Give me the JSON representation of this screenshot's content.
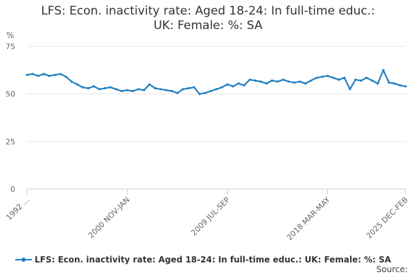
{
  "chart_data": {
    "type": "line",
    "title_line1": "LFS: Econ. inactivity rate: Aged 18-24: In full-time educ.:",
    "title_line2": "UK: Female: %: SA",
    "ylabel": "%",
    "ylim": [
      0,
      75
    ],
    "yticks": [
      "0",
      "25",
      "50",
      "75"
    ],
    "grid": true,
    "legend_position": "bottom",
    "color": "#1f7ec1",
    "x_tick_labels": [
      "1992 ...",
      "2000 NOV-JAN",
      "2009 JUL-SEP",
      "2018 MAR-MAY",
      "2025 DEC-FEB"
    ],
    "x_range": [
      "1992",
      "2025 DEC-FEB"
    ],
    "series": [
      {
        "name": "LFS: Econ. inactivity rate: Aged 18-24: In full-time educ.: UK: Female: %: SA",
        "x": [
          1992.0,
          1992.5,
          1993.0,
          1993.5,
          1994.0,
          1994.5,
          1995.0,
          1995.5,
          1996.0,
          1996.5,
          1997.0,
          1997.5,
          1998.0,
          1998.5,
          1999.0,
          1999.5,
          2000.0,
          2000.5,
          2001.0,
          2001.5,
          2002.0,
          2002.5,
          2003.0,
          2003.5,
          2004.0,
          2004.5,
          2005.0,
          2005.5,
          2006.0,
          2006.5,
          2007.0,
          2007.5,
          2008.0,
          2008.5,
          2009.0,
          2009.5,
          2010.0,
          2010.5,
          2011.0,
          2011.5,
          2012.0,
          2012.5,
          2013.0,
          2013.5,
          2014.0,
          2014.5,
          2015.0,
          2015.5,
          2016.0,
          2016.5,
          2017.0,
          2017.5,
          2018.0,
          2018.5,
          2019.0,
          2019.5,
          2020.0,
          2020.5,
          2021.0,
          2021.5,
          2022.0,
          2022.5,
          2023.0,
          2023.5,
          2024.0,
          2024.5,
          2025.0,
          2025.5,
          2026.0
        ],
        "values": [
          60.0,
          60.5,
          59.5,
          60.5,
          59.5,
          60.0,
          60.5,
          59.0,
          56.5,
          55.0,
          53.5,
          53.0,
          54.0,
          52.5,
          53.0,
          53.5,
          52.5,
          51.5,
          52.0,
          51.5,
          52.5,
          52.0,
          55.0,
          53.0,
          52.5,
          52.0,
          51.5,
          50.5,
          52.5,
          53.0,
          53.5,
          50.0,
          50.5,
          51.5,
          52.5,
          53.5,
          55.0,
          54.0,
          55.5,
          54.5,
          57.5,
          57.0,
          56.5,
          55.5,
          57.0,
          56.5,
          57.5,
          56.5,
          56.0,
          56.5,
          55.5,
          57.0,
          58.5,
          59.0,
          59.5,
          58.5,
          57.5,
          58.5,
          52.5,
          57.5,
          57.0,
          58.5,
          57.0,
          55.5,
          62.5,
          56.0,
          55.5,
          54.5,
          54.0
        ]
      }
    ],
    "source_label": "Source:"
  }
}
